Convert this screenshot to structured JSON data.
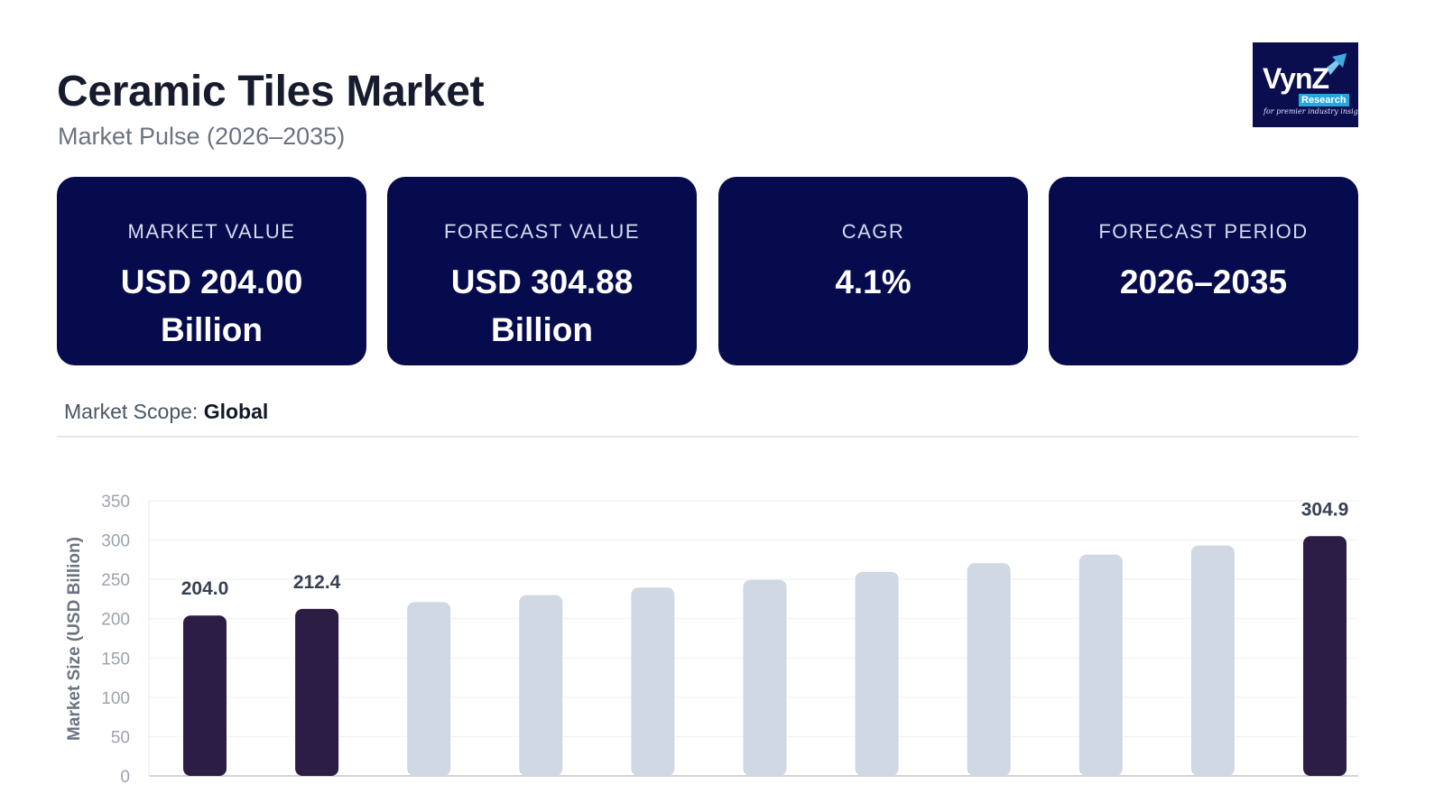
{
  "header": {
    "title": "Ceramic Tiles Market",
    "subtitle": "Market Pulse (2026–2035)"
  },
  "logo": {
    "brand": "VynZ",
    "sub": "Research",
    "tagline": "for premier industry insights",
    "icon": "arrow-up-right-icon"
  },
  "cards": [
    {
      "label": "MARKET VALUE",
      "value": "USD 204.00 Billion"
    },
    {
      "label": "FORECAST VALUE",
      "value": "USD 304.88 Billion"
    },
    {
      "label": "CAGR",
      "value": "4.1%"
    },
    {
      "label": "FORECAST PERIOD",
      "value": "2026–2035"
    }
  ],
  "scope": {
    "label": "Market Scope:",
    "value": "Global"
  },
  "colors": {
    "card_bg": "#060b4e",
    "highlight_bar": "#2c1d45",
    "muted_bar": "#cfd8e3",
    "grid": "#eef0f3"
  },
  "chart_data": {
    "type": "bar",
    "title": "",
    "xlabel": "",
    "ylabel": "Market Size (USD Billion)",
    "ylim": [
      0,
      350
    ],
    "yticks": [
      0,
      50,
      100,
      150,
      200,
      250,
      300,
      350
    ],
    "grid": true,
    "values": [
      204.0,
      212.4,
      221.0,
      230.0,
      239.5,
      249.5,
      259.5,
      270.5,
      281.5,
      293.0,
      304.9
    ],
    "highlighted": [
      true,
      true,
      false,
      false,
      false,
      false,
      false,
      false,
      false,
      false,
      true
    ],
    "data_labels": [
      "204.0",
      "212.4",
      "",
      "",
      "",
      "",
      "",
      "",
      "",
      "",
      "304.9"
    ]
  }
}
